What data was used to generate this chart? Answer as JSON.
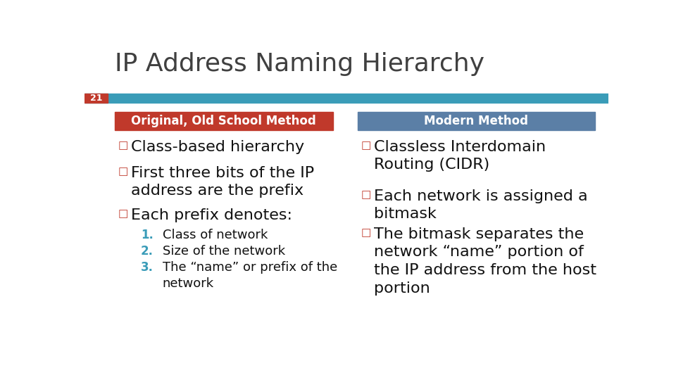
{
  "title": "IP Address Naming Hierarchy",
  "slide_number": "21",
  "slide_number_bg": "#c0392b",
  "top_bar_color": "#3a9cb8",
  "background_color": "#ffffff",
  "title_color": "#404040",
  "left_header": "Original, Old School Method",
  "left_header_bg": "#c0392b",
  "left_header_text_color": "#ffffff",
  "right_header": "Modern Method",
  "right_header_bg": "#5b7fa6",
  "right_header_text_color": "#ffffff",
  "left_bullet_color": "#c0392b",
  "right_bullet_color": "#c0392b",
  "number_color": "#3a9cb8",
  "text_color": "#111111",
  "left_bullets": [
    "Class-based hierarchy",
    "First three bits of the IP\naddress are the prefix",
    "Each prefix denotes:"
  ],
  "left_subitems": [
    "Class of network",
    "Size of the network",
    "The “name” or prefix of the\nnetwork"
  ],
  "right_bullets": [
    "Classless Interdomain\nRouting (CIDR)",
    "Each network is assigned a\nbitmask",
    "The bitmask separates the\nnetwork “name” portion of\nthe IP address from the host\nportion"
  ]
}
